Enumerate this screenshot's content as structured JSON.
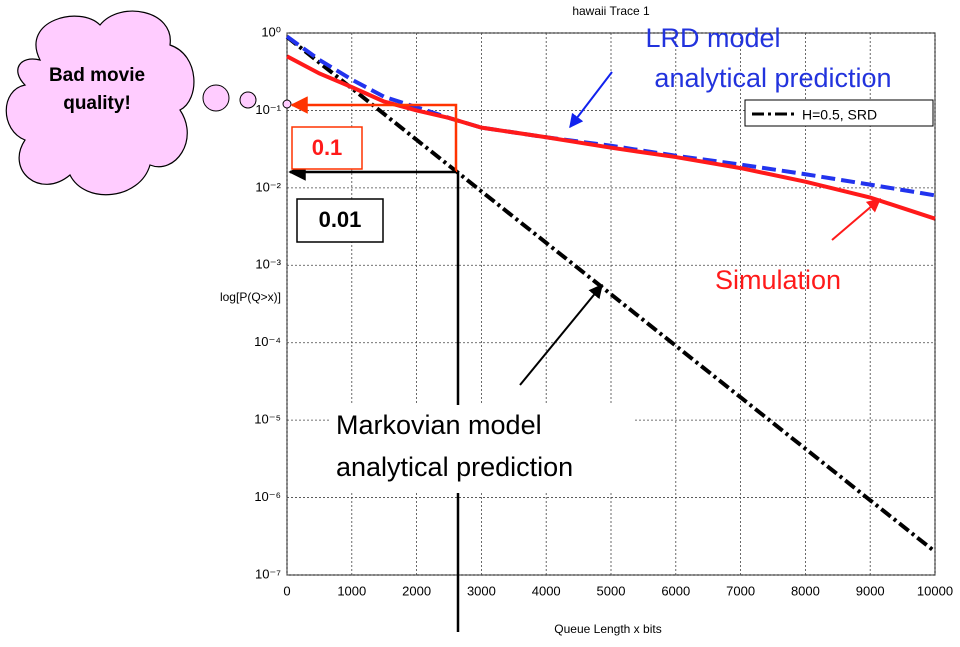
{
  "chart_data": {
    "type": "line",
    "title": "hawaii  Trace 1",
    "x_label": "Queue Length x bits",
    "y_label": "log[P(Q>x)]",
    "log_y": true,
    "grid": true,
    "x": [
      0,
      500,
      1000,
      1500,
      2000,
      2500,
      3000,
      4000,
      5000,
      6000,
      7000,
      8000,
      9000,
      10000
    ],
    "series": [
      {
        "name": "H=0.5, SRD",
        "color": "#000000",
        "style": "dashdot",
        "values": [
          0.89,
          0.414,
          0.193,
          0.0896,
          0.0417,
          0.0194,
          0.00902,
          0.00195,
          0.000422,
          9.12e-05,
          1.97e-05,
          4.27e-06,
          9.23e-07,
          2e-07
        ]
      },
      {
        "color": "#2233ee",
        "style": "dashed",
        "values": [
          0.9,
          0.45,
          0.25,
          0.15,
          0.11,
          0.08,
          0.06,
          0.045,
          0.035,
          0.026,
          0.02,
          0.015,
          0.011,
          0.008
        ]
      },
      {
        "color": "#ff1a1a",
        "style": "solid",
        "values": [
          0.5,
          0.3,
          0.2,
          0.13,
          0.1,
          0.08,
          0.06,
          0.045,
          0.033,
          0.025,
          0.018,
          0.012,
          0.0075,
          0.004
        ]
      }
    ],
    "xlim": [
      0,
      10000
    ],
    "xticks": [
      0,
      1000,
      2000,
      3000,
      4000,
      5000,
      6000,
      7000,
      8000,
      9000,
      10000
    ],
    "ylim": [
      1e-07,
      1
    ],
    "yticks": [
      {
        "value": 1,
        "label": "10⁰"
      },
      {
        "value": 0.1,
        "label": "10⁻¹"
      },
      {
        "value": 0.01,
        "label": "10⁻²"
      },
      {
        "value": 0.001,
        "label": "10⁻³"
      },
      {
        "value": 0.0001,
        "label": "10⁻⁴"
      },
      {
        "value": 1e-05,
        "label": "10⁻⁵"
      },
      {
        "value": 1e-06,
        "label": "10⁻⁶"
      },
      {
        "value": 1e-07,
        "label": "10⁻⁷"
      }
    ],
    "annotations": [
      {
        "lines": [
          "Bad movie",
          "quality!"
        ]
      },
      {
        "lines": [
          "LRD model",
          "analytical prediction"
        ]
      },
      {
        "lines": [
          "Simulation"
        ]
      },
      {
        "lines": [
          "Markovian model",
          "analytical prediction"
        ]
      },
      {
        "lines": [
          "0.1"
        ]
      },
      {
        "lines": [
          "0.01"
        ]
      }
    ]
  }
}
